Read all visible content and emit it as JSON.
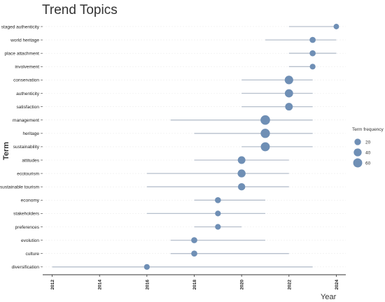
{
  "chart_data": {
    "type": "scatter",
    "title": "Trend Topics",
    "xlabel": "Year",
    "ylabel": "Term",
    "xlim": [
      2011.6,
      2024.4
    ],
    "xticks": [
      "2012",
      "2014",
      "2016",
      "2018",
      "2020",
      "2022",
      "2024"
    ],
    "grid": false,
    "legend": {
      "title": "Term frequency",
      "position": "right",
      "sizes": [
        20,
        40,
        60
      ],
      "labels": [
        "20",
        "40",
        "60"
      ]
    },
    "point_color": "#6f8fb5",
    "line_color": "#b6bfcc",
    "terms": [
      {
        "term": "staged authenticity",
        "start": 2022,
        "median": 2024,
        "end": 2024,
        "frequency": 10
      },
      {
        "term": "world heritage",
        "start": 2021,
        "median": 2023,
        "end": 2024,
        "frequency": 15
      },
      {
        "term": "place attachment",
        "start": 2022,
        "median": 2023,
        "end": 2024,
        "frequency": 15
      },
      {
        "term": "involvement",
        "start": 2022,
        "median": 2023,
        "end": 2023,
        "frequency": 12
      },
      {
        "term": "conservation",
        "start": 2020,
        "median": 2022,
        "end": 2023,
        "frequency": 50
      },
      {
        "term": "authenticity",
        "start": 2020,
        "median": 2022,
        "end": 2023,
        "frequency": 45
      },
      {
        "term": "satisfaction",
        "start": 2020,
        "median": 2022,
        "end": 2023,
        "frequency": 35
      },
      {
        "term": "management",
        "start": 2017,
        "median": 2021,
        "end": 2023,
        "frequency": 70
      },
      {
        "term": "heritage",
        "start": 2018,
        "median": 2021,
        "end": 2023,
        "frequency": 65
      },
      {
        "term": "sustainability",
        "start": 2020,
        "median": 2021,
        "end": 2023,
        "frequency": 60
      },
      {
        "term": "attitudes",
        "start": 2018,
        "median": 2020,
        "end": 2022,
        "frequency": 35
      },
      {
        "term": "ecotourism",
        "start": 2016,
        "median": 2020,
        "end": 2022,
        "frequency": 40
      },
      {
        "term": "sustainable tourism",
        "start": 2016,
        "median": 2020,
        "end": 2022,
        "frequency": 30
      },
      {
        "term": "economy",
        "start": 2018,
        "median": 2019,
        "end": 2021,
        "frequency": 15
      },
      {
        "term": "stakeholders",
        "start": 2016,
        "median": 2019,
        "end": 2021,
        "frequency": 12
      },
      {
        "term": "preferences",
        "start": 2018,
        "median": 2019,
        "end": 2020,
        "frequency": 12
      },
      {
        "term": "evolution",
        "start": 2017,
        "median": 2018,
        "end": 2021,
        "frequency": 15
      },
      {
        "term": "culture",
        "start": 2017,
        "median": 2018,
        "end": 2022,
        "frequency": 15
      },
      {
        "term": "diversification",
        "start": 2012,
        "median": 2016,
        "end": 2023,
        "frequency": 12
      }
    ]
  }
}
